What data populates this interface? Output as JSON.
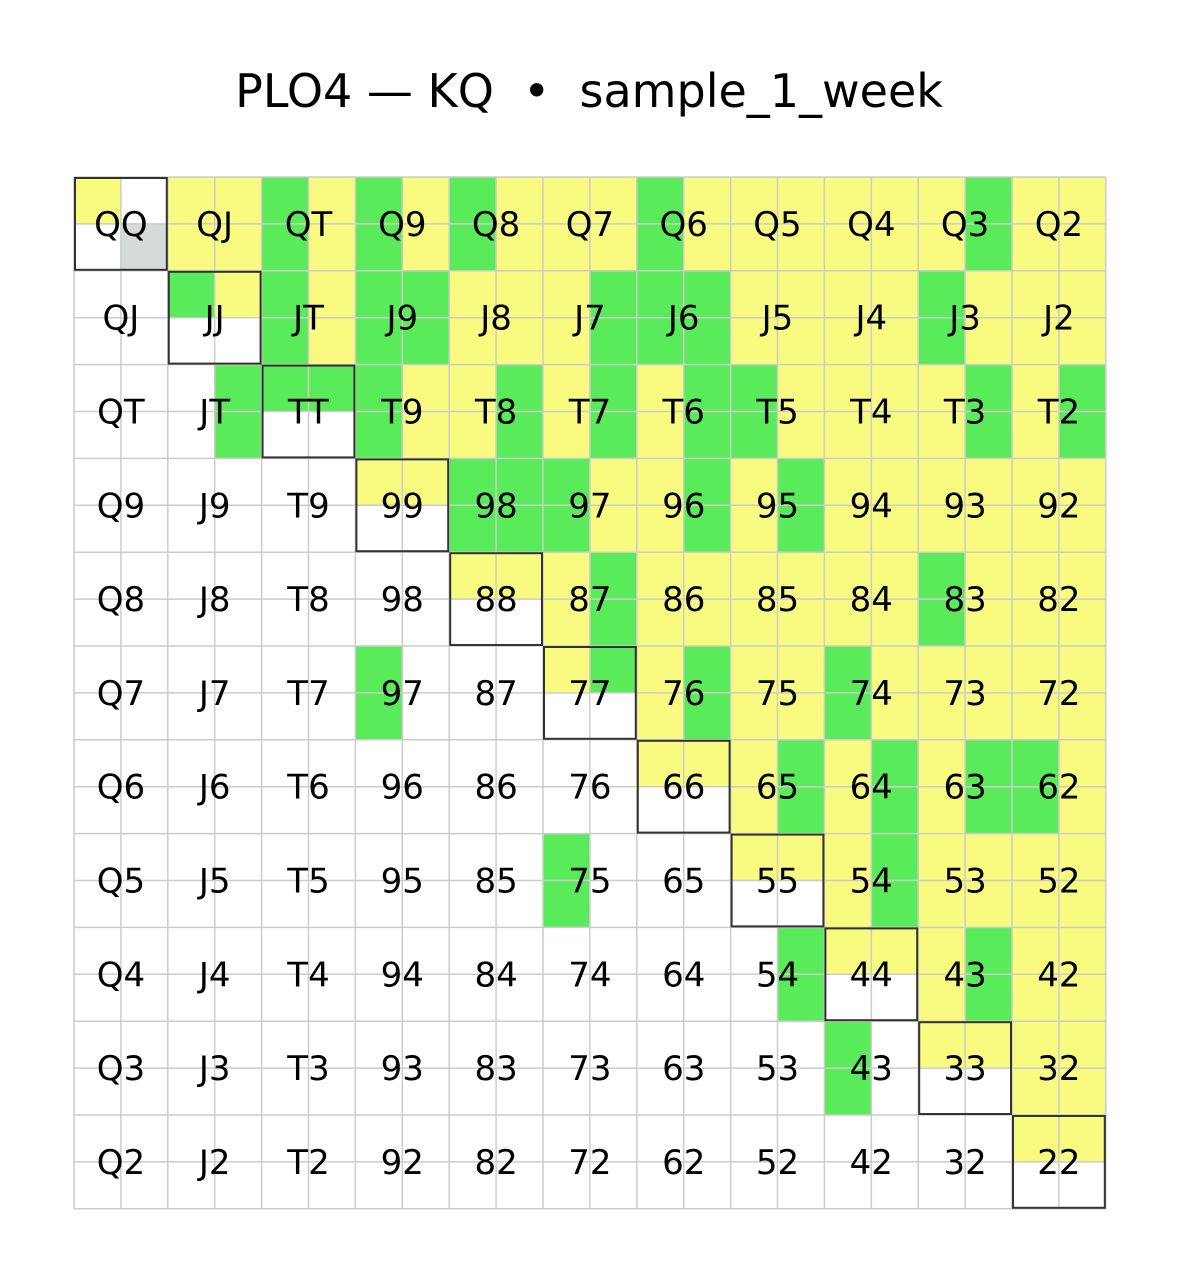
{
  "title": "PLO4 — KQ  •  sample_1_week",
  "chart_data": {
    "type": "heatmap",
    "title": "PLO4 — KQ  •  sample_1_week",
    "ranks": [
      "Q",
      "J",
      "T",
      "9",
      "8",
      "7",
      "6",
      "5",
      "4",
      "3",
      "2"
    ],
    "colors": {
      "yellow": "#f9fb80",
      "green": "#5aeb5a",
      "gray": "#d5dbdb",
      "white": "#ffffff",
      "gridline": "#cccccc",
      "diagonal_border": "#333333"
    },
    "legend": "none",
    "cell_subdivision": "2x2 quadrants: top-left, top-right, bottom-left, bottom-right",
    "rows": [
      [
        [
          "yellow",
          "white",
          "white",
          "gray"
        ],
        [
          "yellow",
          "yellow",
          "yellow",
          "yellow"
        ],
        [
          "green",
          "yellow",
          "green",
          "yellow"
        ],
        [
          "green",
          "yellow",
          "green",
          "yellow"
        ],
        [
          "green",
          "yellow",
          "green",
          "yellow"
        ],
        [
          "yellow",
          "yellow",
          "yellow",
          "yellow"
        ],
        [
          "green",
          "yellow",
          "green",
          "yellow"
        ],
        [
          "yellow",
          "yellow",
          "yellow",
          "yellow"
        ],
        [
          "yellow",
          "yellow",
          "yellow",
          "yellow"
        ],
        [
          "yellow",
          "green",
          "yellow",
          "green"
        ],
        [
          "yellow",
          "yellow",
          "yellow",
          "yellow"
        ]
      ],
      [
        [
          "white",
          "white",
          "white",
          "white"
        ],
        [
          "green",
          "yellow",
          "white",
          "white"
        ],
        [
          "green",
          "yellow",
          "green",
          "yellow"
        ],
        [
          "green",
          "green",
          "green",
          "green"
        ],
        [
          "yellow",
          "yellow",
          "yellow",
          "yellow"
        ],
        [
          "yellow",
          "green",
          "yellow",
          "green"
        ],
        [
          "green",
          "green",
          "green",
          "green"
        ],
        [
          "yellow",
          "yellow",
          "yellow",
          "yellow"
        ],
        [
          "yellow",
          "yellow",
          "yellow",
          "yellow"
        ],
        [
          "green",
          "yellow",
          "green",
          "yellow"
        ],
        [
          "yellow",
          "yellow",
          "yellow",
          "yellow"
        ]
      ],
      [
        [
          "white",
          "white",
          "white",
          "white"
        ],
        [
          "white",
          "green",
          "white",
          "green"
        ],
        [
          "green",
          "green",
          "white",
          "white"
        ],
        [
          "green",
          "yellow",
          "green",
          "yellow"
        ],
        [
          "yellow",
          "green",
          "yellow",
          "green"
        ],
        [
          "yellow",
          "green",
          "yellow",
          "green"
        ],
        [
          "yellow",
          "green",
          "yellow",
          "green"
        ],
        [
          "green",
          "yellow",
          "green",
          "yellow"
        ],
        [
          "yellow",
          "yellow",
          "yellow",
          "yellow"
        ],
        [
          "yellow",
          "green",
          "yellow",
          "green"
        ],
        [
          "yellow",
          "green",
          "yellow",
          "green"
        ]
      ],
      [
        [
          "white",
          "white",
          "white",
          "white"
        ],
        [
          "white",
          "white",
          "white",
          "white"
        ],
        [
          "white",
          "white",
          "white",
          "white"
        ],
        [
          "yellow",
          "yellow",
          "white",
          "white"
        ],
        [
          "green",
          "green",
          "green",
          "green"
        ],
        [
          "green",
          "yellow",
          "green",
          "yellow"
        ],
        [
          "yellow",
          "green",
          "yellow",
          "green"
        ],
        [
          "yellow",
          "green",
          "yellow",
          "green"
        ],
        [
          "yellow",
          "yellow",
          "yellow",
          "yellow"
        ],
        [
          "yellow",
          "yellow",
          "yellow",
          "yellow"
        ],
        [
          "yellow",
          "yellow",
          "yellow",
          "yellow"
        ]
      ],
      [
        [
          "white",
          "white",
          "white",
          "white"
        ],
        [
          "white",
          "white",
          "white",
          "white"
        ],
        [
          "white",
          "white",
          "white",
          "white"
        ],
        [
          "white",
          "white",
          "white",
          "white"
        ],
        [
          "yellow",
          "yellow",
          "white",
          "white"
        ],
        [
          "yellow",
          "green",
          "yellow",
          "green"
        ],
        [
          "yellow",
          "yellow",
          "yellow",
          "yellow"
        ],
        [
          "yellow",
          "yellow",
          "yellow",
          "yellow"
        ],
        [
          "yellow",
          "yellow",
          "yellow",
          "yellow"
        ],
        [
          "green",
          "yellow",
          "green",
          "yellow"
        ],
        [
          "yellow",
          "yellow",
          "yellow",
          "yellow"
        ]
      ],
      [
        [
          "white",
          "white",
          "white",
          "white"
        ],
        [
          "white",
          "white",
          "white",
          "white"
        ],
        [
          "white",
          "white",
          "white",
          "white"
        ],
        [
          "green",
          "white",
          "green",
          "white"
        ],
        [
          "white",
          "white",
          "white",
          "white"
        ],
        [
          "yellow",
          "green",
          "white",
          "white"
        ],
        [
          "yellow",
          "green",
          "yellow",
          "green"
        ],
        [
          "yellow",
          "yellow",
          "yellow",
          "yellow"
        ],
        [
          "green",
          "yellow",
          "green",
          "yellow"
        ],
        [
          "yellow",
          "yellow",
          "yellow",
          "yellow"
        ],
        [
          "yellow",
          "yellow",
          "yellow",
          "yellow"
        ]
      ],
      [
        [
          "white",
          "white",
          "white",
          "white"
        ],
        [
          "white",
          "white",
          "white",
          "white"
        ],
        [
          "white",
          "white",
          "white",
          "white"
        ],
        [
          "white",
          "white",
          "white",
          "white"
        ],
        [
          "white",
          "white",
          "white",
          "white"
        ],
        [
          "white",
          "white",
          "white",
          "white"
        ],
        [
          "yellow",
          "yellow",
          "white",
          "white"
        ],
        [
          "yellow",
          "green",
          "yellow",
          "green"
        ],
        [
          "yellow",
          "green",
          "yellow",
          "green"
        ],
        [
          "yellow",
          "green",
          "yellow",
          "green"
        ],
        [
          "green",
          "yellow",
          "green",
          "yellow"
        ]
      ],
      [
        [
          "white",
          "white",
          "white",
          "white"
        ],
        [
          "white",
          "white",
          "white",
          "white"
        ],
        [
          "white",
          "white",
          "white",
          "white"
        ],
        [
          "white",
          "white",
          "white",
          "white"
        ],
        [
          "white",
          "white",
          "white",
          "white"
        ],
        [
          "green",
          "white",
          "green",
          "white"
        ],
        [
          "white",
          "white",
          "white",
          "white"
        ],
        [
          "yellow",
          "yellow",
          "white",
          "white"
        ],
        [
          "yellow",
          "green",
          "yellow",
          "green"
        ],
        [
          "yellow",
          "yellow",
          "yellow",
          "yellow"
        ],
        [
          "yellow",
          "yellow",
          "yellow",
          "yellow"
        ]
      ],
      [
        [
          "white",
          "white",
          "white",
          "white"
        ],
        [
          "white",
          "white",
          "white",
          "white"
        ],
        [
          "white",
          "white",
          "white",
          "white"
        ],
        [
          "white",
          "white",
          "white",
          "white"
        ],
        [
          "white",
          "white",
          "white",
          "white"
        ],
        [
          "white",
          "white",
          "white",
          "white"
        ],
        [
          "white",
          "white",
          "white",
          "white"
        ],
        [
          "white",
          "green",
          "white",
          "green"
        ],
        [
          "yellow",
          "yellow",
          "white",
          "white"
        ],
        [
          "yellow",
          "green",
          "yellow",
          "green"
        ],
        [
          "yellow",
          "yellow",
          "yellow",
          "yellow"
        ]
      ],
      [
        [
          "white",
          "white",
          "white",
          "white"
        ],
        [
          "white",
          "white",
          "white",
          "white"
        ],
        [
          "white",
          "white",
          "white",
          "white"
        ],
        [
          "white",
          "white",
          "white",
          "white"
        ],
        [
          "white",
          "white",
          "white",
          "white"
        ],
        [
          "white",
          "white",
          "white",
          "white"
        ],
        [
          "white",
          "white",
          "white",
          "white"
        ],
        [
          "white",
          "white",
          "white",
          "white"
        ],
        [
          "green",
          "white",
          "green",
          "white"
        ],
        [
          "yellow",
          "yellow",
          "white",
          "white"
        ],
        [
          "yellow",
          "yellow",
          "yellow",
          "yellow"
        ]
      ],
      [
        [
          "white",
          "white",
          "white",
          "white"
        ],
        [
          "white",
          "white",
          "white",
          "white"
        ],
        [
          "white",
          "white",
          "white",
          "white"
        ],
        [
          "white",
          "white",
          "white",
          "white"
        ],
        [
          "white",
          "white",
          "white",
          "white"
        ],
        [
          "white",
          "white",
          "white",
          "white"
        ],
        [
          "white",
          "white",
          "white",
          "white"
        ],
        [
          "white",
          "white",
          "white",
          "white"
        ],
        [
          "white",
          "white",
          "white",
          "white"
        ],
        [
          "white",
          "white",
          "white",
          "white"
        ],
        [
          "yellow",
          "yellow",
          "white",
          "white"
        ]
      ]
    ]
  }
}
